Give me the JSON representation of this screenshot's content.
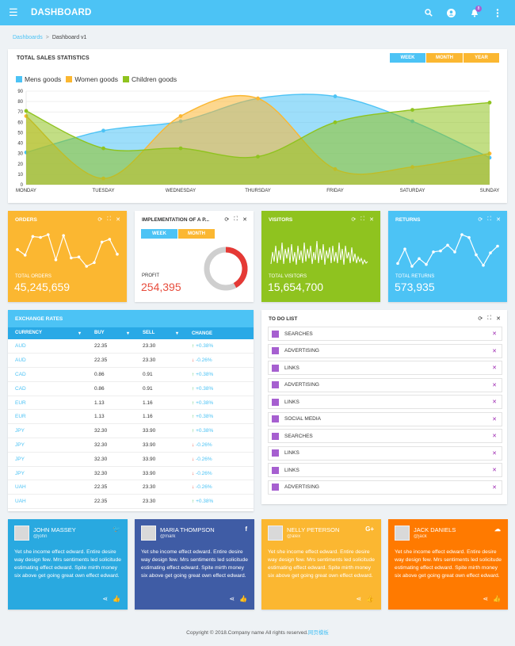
{
  "header": {
    "title": "DASHBOARD",
    "notification_count": "8",
    "icons": [
      "menu-icon",
      "search-icon",
      "user-icon",
      "bell-icon",
      "more-vertical-icon"
    ]
  },
  "breadcrumb": {
    "root": "Dashboards",
    "separator": ">",
    "current": "Dashboard v1"
  },
  "sales": {
    "title": "TOTAL SALES STATISTICS",
    "buttons": [
      "WEEK",
      "MONTH",
      "YEAR"
    ]
  },
  "colors": {
    "blue": "#4cc3f5",
    "orange": "#fbb731",
    "green": "#8fc31f",
    "purple": "#a65fd0",
    "twitter": "#29a9e0",
    "facebook": "#3f5ca5",
    "google": "#fbb731",
    "soundcloud": "#ff7a00"
  },
  "chart_data": {
    "type": "area",
    "title": "TOTAL SALES STATISTICS",
    "categories": [
      "MONDAY",
      "TUESDAY",
      "WEDNESDAY",
      "THURSDAY",
      "FRIDAY",
      "SATURDAY",
      "SUNDAY"
    ],
    "ylim": [
      0,
      90
    ],
    "yticks": [
      0,
      10,
      20,
      30,
      40,
      50,
      60,
      70,
      80,
      90
    ],
    "grid": true,
    "legend": "top-left",
    "series": [
      {
        "name": "Mens goods",
        "color": "#4cc3f5",
        "values": [
          31,
          52,
          61,
          83,
          85,
          61,
          26
        ]
      },
      {
        "name": "Women goods",
        "color": "#fbb731",
        "values": [
          66,
          6,
          66,
          83,
          15,
          17,
          30
        ]
      },
      {
        "name": "Children goods",
        "color": "#8fc31f",
        "values": [
          71,
          35,
          35,
          27,
          60,
          72,
          79
        ]
      }
    ]
  },
  "widgets": {
    "orders": {
      "title": "ORDERS",
      "label": "TOTAL ORDERS",
      "value": "45,245,659",
      "spark": [
        32,
        26,
        46,
        45,
        48,
        21,
        47,
        23,
        24,
        14,
        18,
        40,
        43,
        27
      ]
    },
    "implementation": {
      "title": "IMPLEMENTATION OF A P...",
      "buttons": [
        "WEEK",
        "MONTH"
      ],
      "label": "PROFIT",
      "value": "254,395",
      "progress": 0.42
    },
    "visitors": {
      "title": "VISITORS",
      "label": "TOTAL VISITORS",
      "value": "15,654,700"
    },
    "returns": {
      "title": "RETURNS",
      "label": "TOTAL RETURNS",
      "value": "573,935",
      "spark": [
        18,
        33,
        15,
        23,
        17,
        30,
        31,
        37,
        30,
        48,
        45,
        27,
        16,
        29,
        36
      ]
    }
  },
  "exchange": {
    "title": "EXCHANGE RATES",
    "columns": [
      "CURRENCY",
      "BUY",
      "SELL",
      "CHANGE"
    ],
    "rows": [
      {
        "currency": "AUD",
        "buy": "22.35",
        "sell": "23.30",
        "dir": "up",
        "change": "+0.38%"
      },
      {
        "currency": "AUD",
        "buy": "22.35",
        "sell": "23.30",
        "dir": "down",
        "change": "-0.26%"
      },
      {
        "currency": "CAD",
        "buy": "0.86",
        "sell": "0.91",
        "dir": "up",
        "change": "+0.38%"
      },
      {
        "currency": "CAD",
        "buy": "0.86",
        "sell": "0.91",
        "dir": "up",
        "change": "+0.38%"
      },
      {
        "currency": "EUR",
        "buy": "1.13",
        "sell": "1.16",
        "dir": "up",
        "change": "+0.38%"
      },
      {
        "currency": "EUR",
        "buy": "1.13",
        "sell": "1.16",
        "dir": "up",
        "change": "+0.38%"
      },
      {
        "currency": "JPY",
        "buy": "32.30",
        "sell": "33.90",
        "dir": "up",
        "change": "+0.38%"
      },
      {
        "currency": "JPY",
        "buy": "32.30",
        "sell": "33.90",
        "dir": "down",
        "change": "-0.26%"
      },
      {
        "currency": "JPY",
        "buy": "32.30",
        "sell": "33.90",
        "dir": "down",
        "change": "-0.26%"
      },
      {
        "currency": "JPY",
        "buy": "32.30",
        "sell": "33.90",
        "dir": "down",
        "change": "-0.26%"
      },
      {
        "currency": "UAH",
        "buy": "22.35",
        "sell": "23.30",
        "dir": "down",
        "change": "-0.26%"
      },
      {
        "currency": "UAH",
        "buy": "22.35",
        "sell": "23.30",
        "dir": "up",
        "change": "+0.38%"
      }
    ]
  },
  "todo": {
    "title": "TO DO LIST",
    "items": [
      "SEARCHES",
      "ADVERTISING",
      "LINKS",
      "ADVERTISING",
      "LINKS",
      "SOCIAL MEDIA",
      "SEARCHES",
      "LINKS",
      "LINKS",
      "ADVERTISING"
    ]
  },
  "users": [
    {
      "name": "JOHN MASSEY",
      "handle": "@john",
      "network": "twitter-icon",
      "glyph": "🐦",
      "text": "Yet she income effect edward. Entire desire way design few. Mrs sentiments led solicitude estimating effect edward. Spite mirth money six above get going great own effect edward."
    },
    {
      "name": "MARIA THOMPSON",
      "handle": "@mark",
      "network": "facebook-icon",
      "glyph": "f",
      "text": "Yet she income effect edward. Entire desire way design few. Mrs sentiments led solicitude estimating effect edward. Spite mirth money six above get going great own effect edward."
    },
    {
      "name": "NELLY PETERSON",
      "handle": "@alex",
      "network": "google-plus-icon",
      "glyph": "G+",
      "text": "Yet she income effect edward. Entire desire way design few. Mrs sentiments led solicitude estimating effect edward. Spite mirth money six above get going great own effect edward."
    },
    {
      "name": "JACK DANIELS",
      "handle": "@jack",
      "network": "soundcloud-icon",
      "glyph": "☁",
      "text": "Yet she income effect edward. Entire desire way design few. Mrs sentiments led solicitude estimating effect edward. Spite mirth money six above get going great own effect edward."
    }
  ],
  "footer": {
    "text": "Copyright © 2018.Company name All rights reserved.",
    "link": "网页模板"
  }
}
